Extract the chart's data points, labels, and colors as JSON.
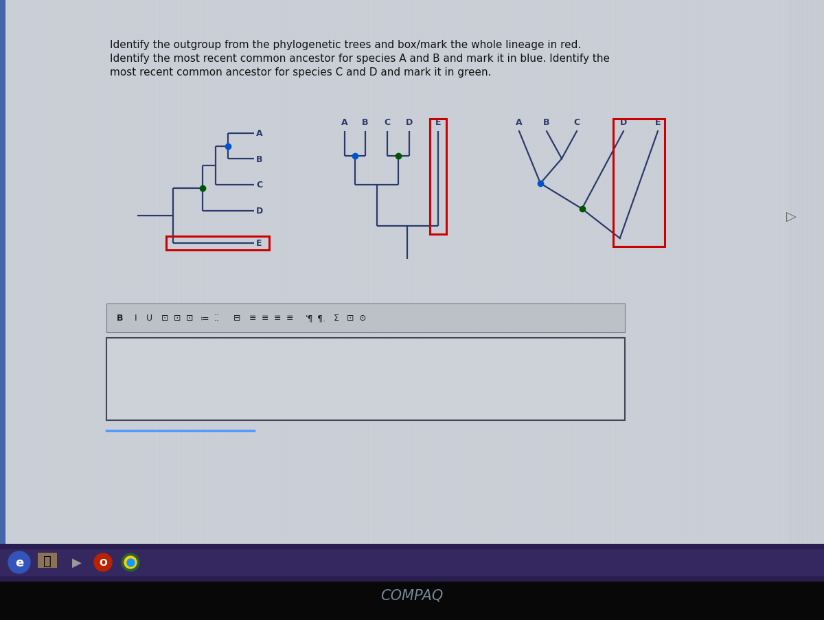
{
  "bg_color": "#c8cdd5",
  "stripe_color": "#d0d5dc",
  "tree_color": "#2b3a6b",
  "red_color": "#cc0000",
  "blue_color": "#0055cc",
  "green_color": "#005500",
  "text_color": "#111111",
  "instruction_text_line1": "Identify the outgroup from the phylogenetic trees and box/mark the whole lineage in red.",
  "instruction_text_line2": "Identify the most recent common ancestor for species A and B and mark it in blue. Identify the",
  "instruction_text_line3": "most recent common ancestor for species C and D and mark it in green.",
  "toolbar_bg": "#c0c5cc",
  "answer_box_bg": "#d8dde4",
  "taskbar_bg": "#2a2050",
  "taskbar_bottom_bg": "#111111",
  "compaq_color": "#888899",
  "blue_left_border": "#5599ff",
  "left_panel_bg": "#b8bdc5"
}
